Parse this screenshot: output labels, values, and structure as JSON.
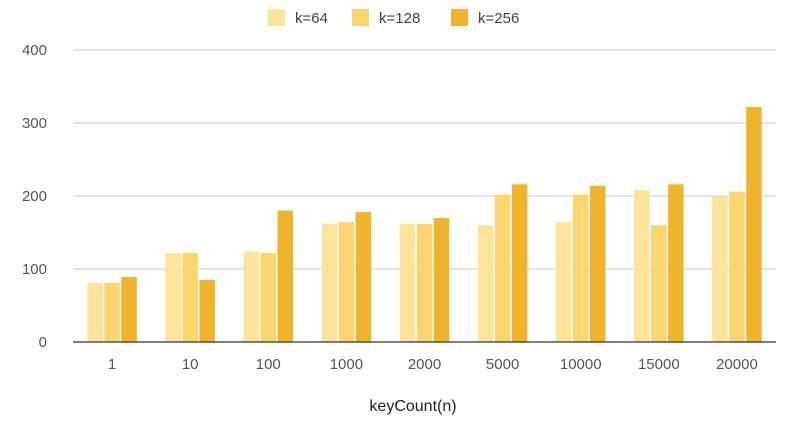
{
  "chart_data": {
    "type": "bar",
    "title": "",
    "xlabel": "keyCount(n)",
    "ylabel": "",
    "categories": [
      "1",
      "10",
      "100",
      "1000",
      "2000",
      "5000",
      "10000",
      "15000",
      "20000"
    ],
    "series": [
      {
        "name": "k=64",
        "color": "#FCE49B",
        "values": [
          81,
          122,
          124,
          162,
          162,
          160,
          164,
          208,
          200
        ]
      },
      {
        "name": "k=128",
        "color": "#FBD56E",
        "values": [
          81,
          122,
          122,
          164,
          162,
          202,
          202,
          160,
          206
        ]
      },
      {
        "name": "k=256",
        "color": "#F1B22C",
        "values": [
          89,
          85,
          180,
          178,
          170,
          216,
          214,
          216,
          322
        ]
      }
    ],
    "ylim": [
      0,
      400
    ],
    "yticks": [
      0,
      100,
      200,
      300,
      400
    ],
    "grid": true,
    "legend_position": "top-center"
  }
}
